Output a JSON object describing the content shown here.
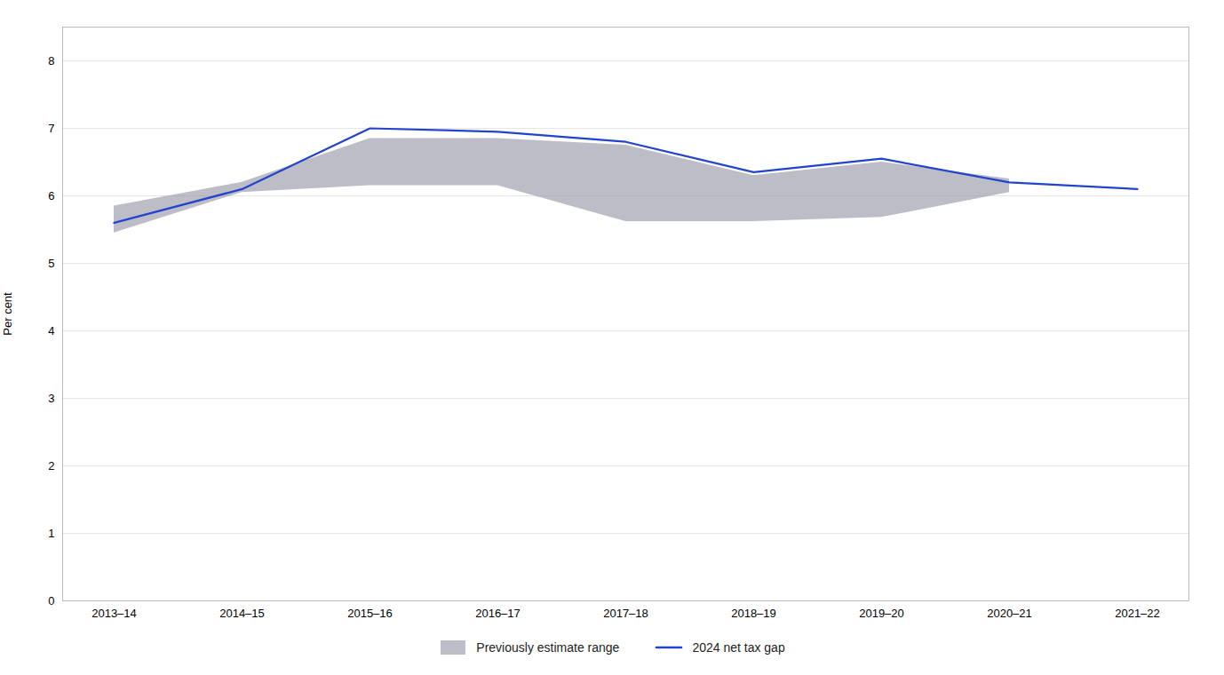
{
  "chart_data": {
    "type": "line",
    "categories": [
      "2013–14",
      "2014–15",
      "2015–16",
      "2016–17",
      "2017–18",
      "2018–19",
      "2019–20",
      "2020–21",
      "2021–22"
    ],
    "series": [
      {
        "name": "Previously estimate range",
        "type": "area",
        "color": "#999AAA",
        "upper": [
          5.85,
          6.2,
          6.85,
          6.85,
          6.75,
          6.3,
          6.5,
          6.25,
          null
        ],
        "lower": [
          5.45,
          6.05,
          6.15,
          6.15,
          5.62,
          5.62,
          5.68,
          6.05,
          null
        ]
      },
      {
        "name": "2024 net tax gap",
        "type": "line",
        "color": "#2244CC",
        "values": [
          5.6,
          6.1,
          7.0,
          6.95,
          6.8,
          6.35,
          6.55,
          6.2,
          6.1
        ]
      }
    ],
    "ylabel": "Per cent",
    "ylim": [
      0,
      8.5
    ],
    "yticks": [
      0,
      1,
      2,
      3,
      4,
      5,
      6,
      7,
      8
    ],
    "grid": true,
    "legend": "bottom"
  }
}
